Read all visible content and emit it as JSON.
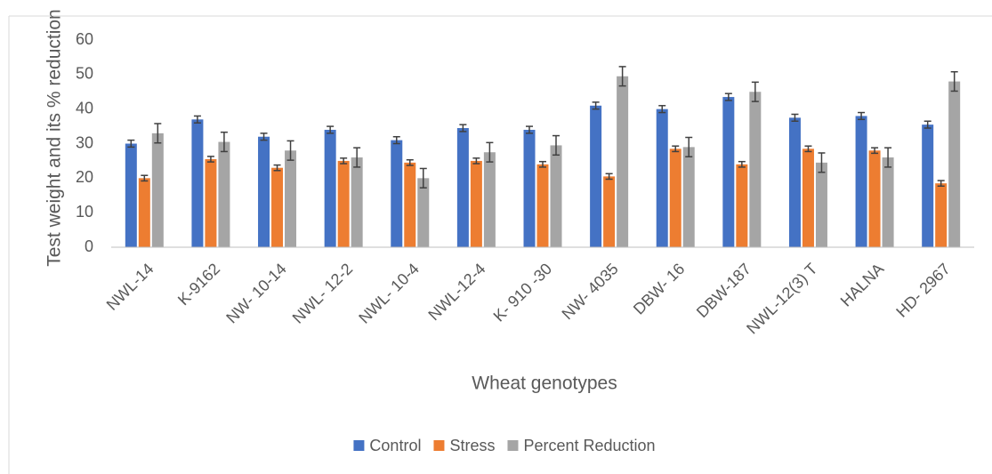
{
  "chart_data": {
    "type": "bar",
    "y_label": "Test weight and its % reduction",
    "x_label": "Wheat genotypes",
    "categories": [
      "NWL-14",
      "K-9162",
      "NW- 10-14",
      "NWL- 12-2",
      "NWL- 10-4",
      "NWL-12-4",
      "K- 910 -30",
      "NW- 4035",
      "DBW- 16",
      "DBW-187",
      "NWL-12(3) T",
      "HALNA",
      "HD- 2967"
    ],
    "series": [
      {
        "name": "Control",
        "color": "#4472c4",
        "values": [
          30,
          37,
          32,
          34,
          31,
          34.5,
          34,
          41,
          40,
          43.5,
          37.5,
          38,
          35.5
        ],
        "errors": [
          1,
          1,
          1,
          1,
          1,
          1,
          1,
          1,
          1,
          1,
          1,
          1,
          1
        ]
      },
      {
        "name": "Stress",
        "color": "#ed7d31",
        "values": [
          20,
          25.5,
          23,
          25,
          24.5,
          25,
          24,
          20.5,
          28.5,
          24,
          28.5,
          28,
          18.5
        ],
        "errors": [
          0.8,
          0.8,
          0.8,
          0.8,
          0.8,
          0.8,
          0.8,
          0.8,
          0.8,
          0.8,
          0.8,
          0.8,
          0.8
        ]
      },
      {
        "name": "Percent Reduction",
        "color": "#a5a5a5",
        "values": [
          33,
          30.5,
          28,
          26,
          20,
          27.5,
          29.5,
          49.5,
          29,
          45,
          24.5,
          26,
          48
        ],
        "errors": [
          2.8,
          2.8,
          2.8,
          2.8,
          2.8,
          2.8,
          2.8,
          2.8,
          2.8,
          2.8,
          2.8,
          2.8,
          2.8
        ]
      }
    ],
    "ylim": [
      0,
      60
    ],
    "yticks": [
      0,
      10,
      20,
      30,
      40,
      50,
      60
    ],
    "grid": false,
    "legend": "bottom"
  }
}
